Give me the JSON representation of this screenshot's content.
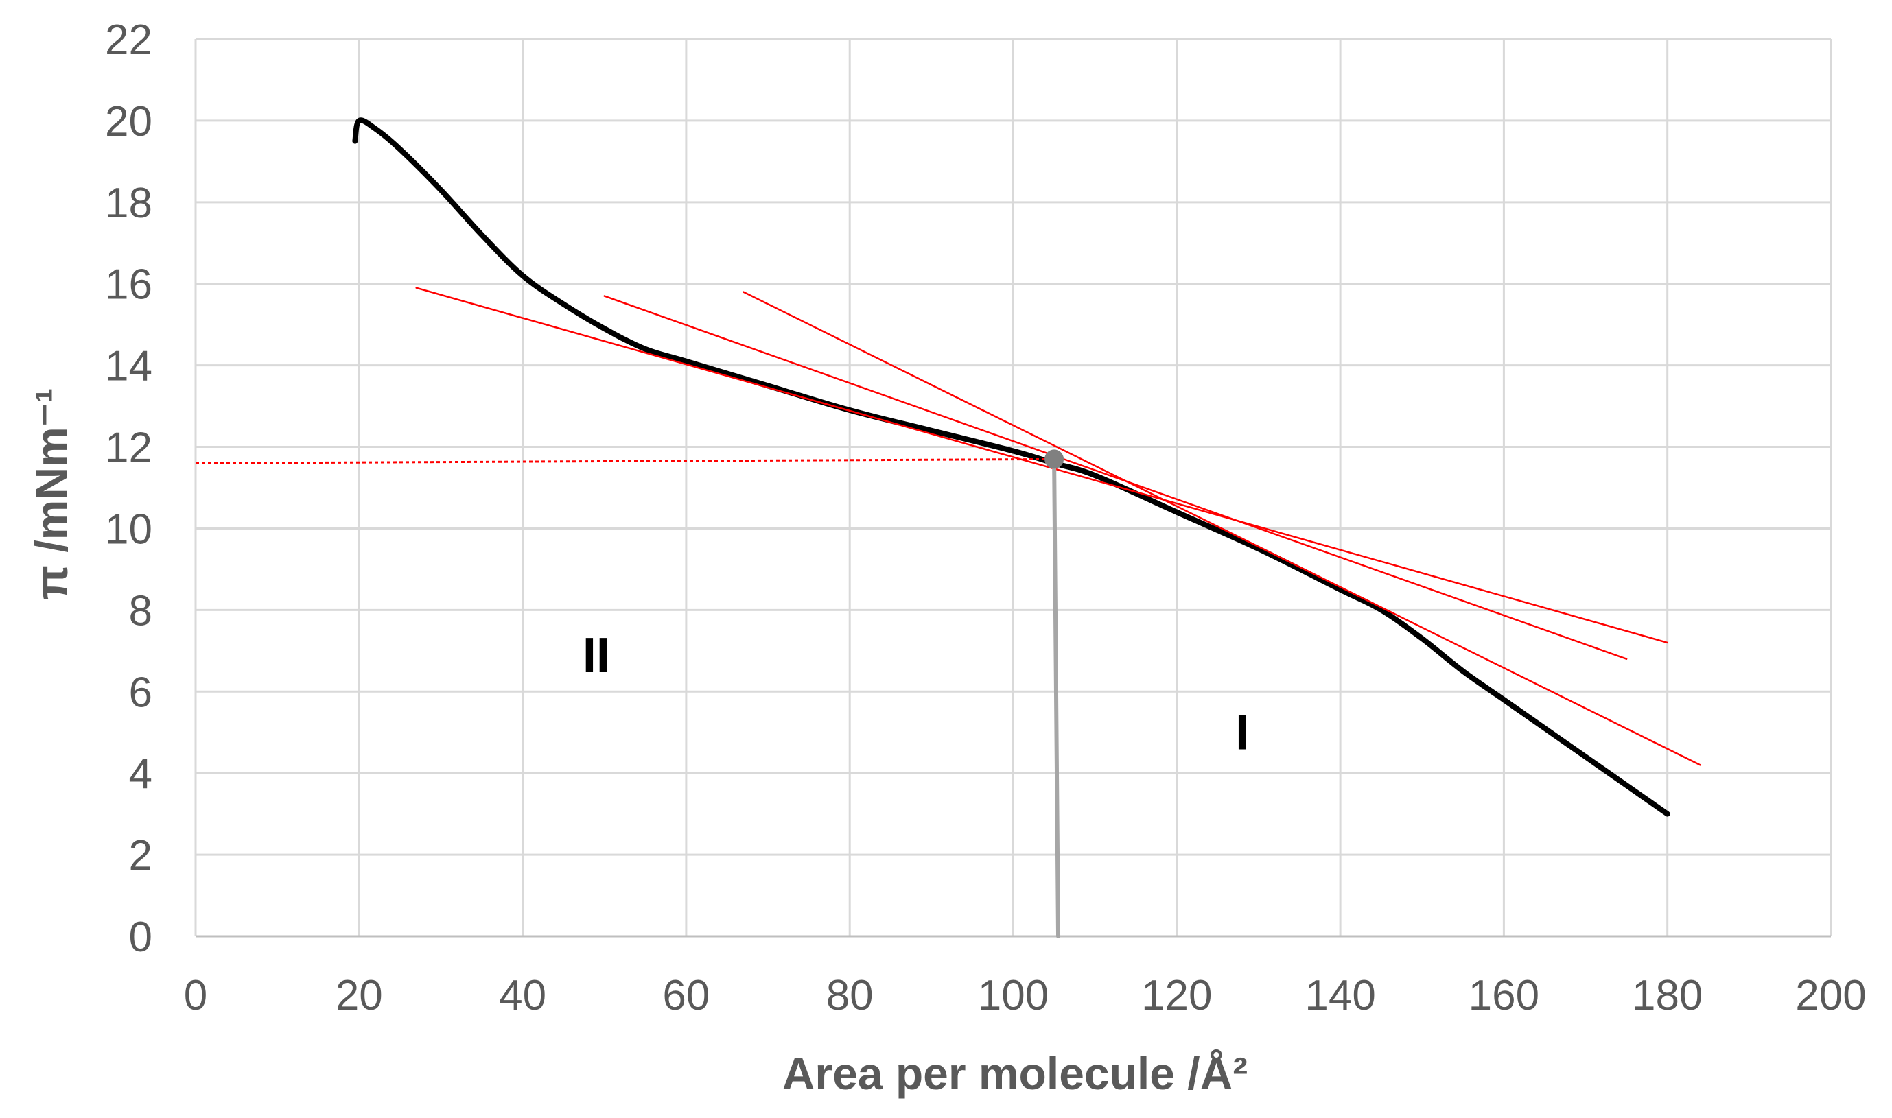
{
  "chart_data": {
    "type": "line",
    "title": "",
    "xlabel": "Area per molecule /Å²",
    "ylabel": "π /mNm⁻¹",
    "xlim": [
      0,
      200
    ],
    "ylim": [
      0,
      22
    ],
    "xticks": [
      "0",
      "20",
      "40",
      "60",
      "80",
      "100",
      "120",
      "140",
      "160",
      "180",
      "200"
    ],
    "yticks": [
      "0",
      "2",
      "4",
      "6",
      "8",
      "10",
      "12",
      "14",
      "16",
      "18",
      "20",
      "22"
    ],
    "grid": true,
    "series": [
      {
        "name": "isotherm",
        "color": "#000000",
        "x": [
          19.5,
          20,
          22,
          25,
          30,
          35,
          40,
          45,
          50,
          55,
          60,
          70,
          80,
          90,
          100,
          105,
          110,
          120,
          130,
          140,
          145,
          150,
          155,
          160,
          165,
          170,
          175,
          180
        ],
        "y": [
          19.5,
          20.0,
          19.8,
          19.3,
          18.3,
          17.2,
          16.2,
          15.5,
          14.9,
          14.4,
          14.1,
          13.5,
          12.9,
          12.4,
          11.9,
          11.6,
          11.3,
          10.4,
          9.5,
          8.5,
          8.0,
          7.3,
          6.5,
          5.8,
          5.1,
          4.4,
          3.7,
          3.0
        ]
      },
      {
        "name": "tangent-1",
        "color": "#ff0000",
        "x": [
          27,
          180
        ],
        "y": [
          15.9,
          7.2
        ]
      },
      {
        "name": "tangent-2",
        "color": "#ff0000",
        "x": [
          50,
          175
        ],
        "y": [
          15.7,
          6.8
        ]
      },
      {
        "name": "tangent-3",
        "color": "#ff0000",
        "x": [
          67,
          184
        ],
        "y": [
          15.8,
          4.2
        ]
      },
      {
        "name": "horizontal-guide",
        "color": "#ff0000",
        "style": "dotted",
        "x": [
          0,
          105
        ],
        "y": [
          11.6,
          11.7
        ]
      },
      {
        "name": "vertical-drop",
        "color": "#a6a6a6",
        "x": [
          105,
          105.5
        ],
        "y": [
          11.7,
          0
        ]
      }
    ],
    "marker": {
      "name": "intersection-point",
      "x": 105,
      "y": 11.7,
      "color": "#808080"
    },
    "annotations": [
      {
        "text": "II",
        "x": 49,
        "y": 6.9
      },
      {
        "text": "I",
        "x": 128,
        "y": 5.0
      }
    ]
  }
}
